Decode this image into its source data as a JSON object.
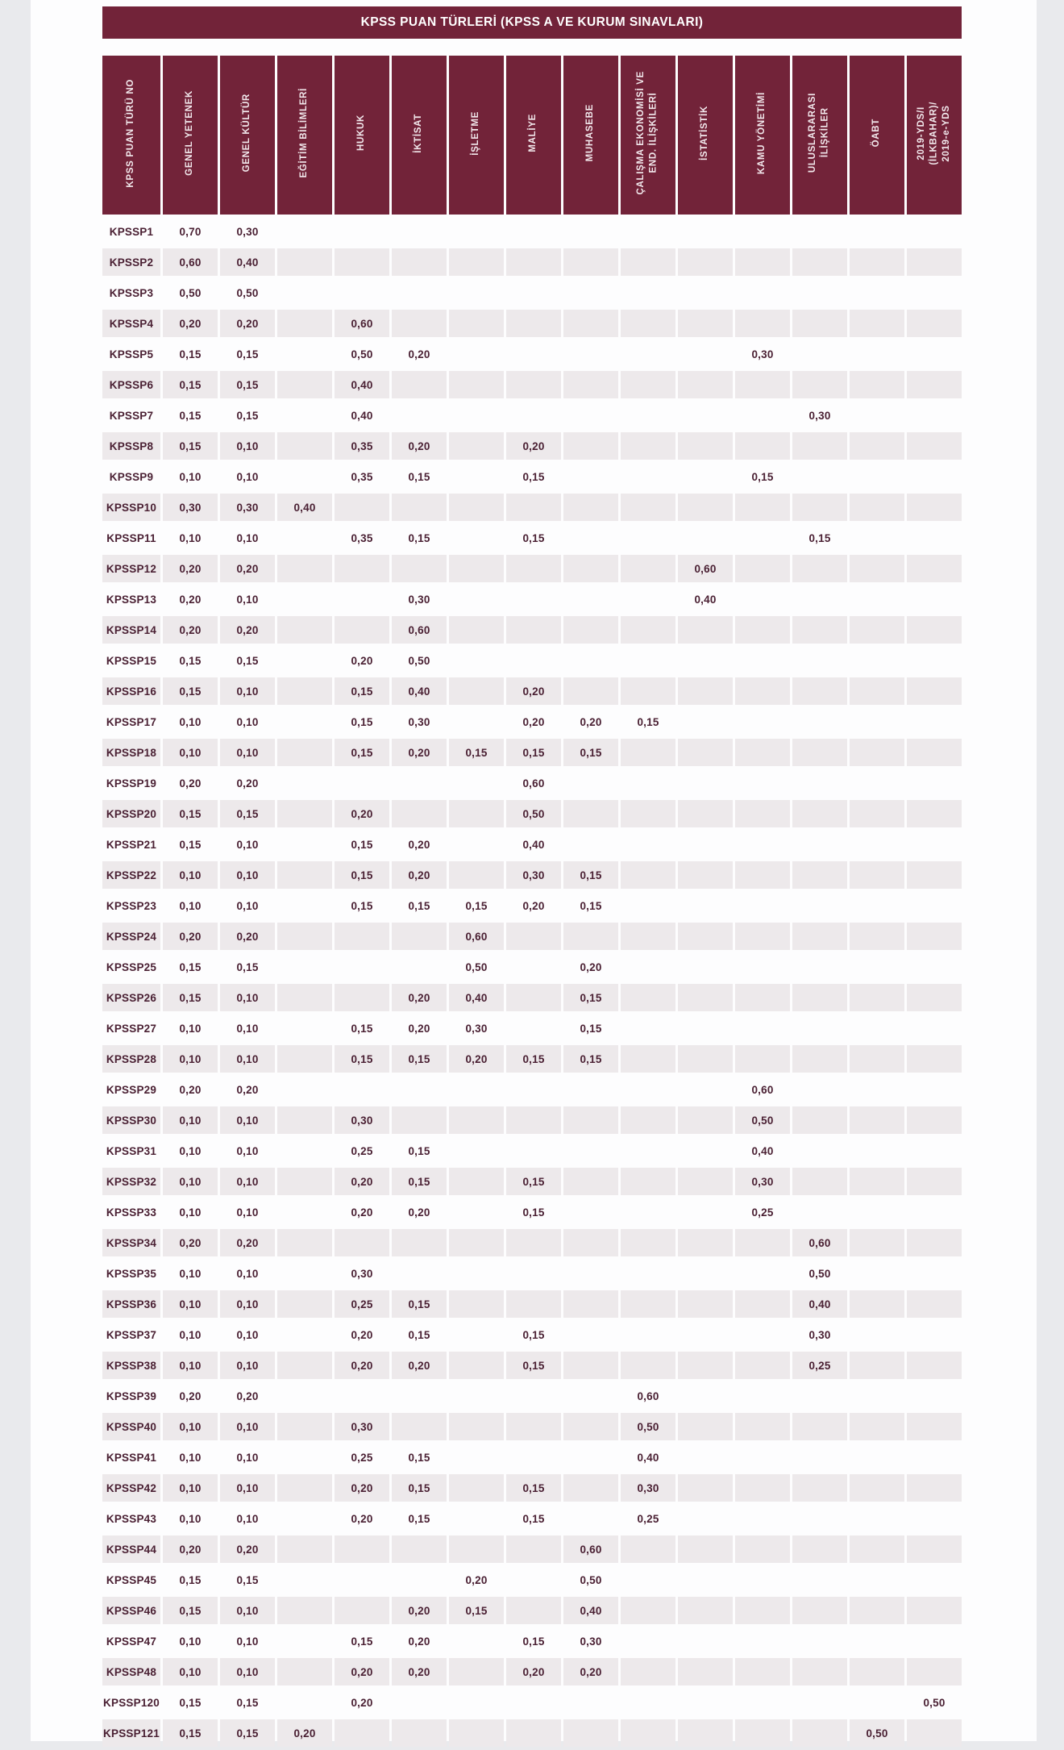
{
  "page": {
    "title": "KPSS PUAN TÜRLERİ (KPSS A VE KURUM SINAVLARI)"
  },
  "colors": {
    "maroon": "#722339",
    "header_text": "#F2E8EC",
    "body_text": "#4A2033",
    "row_alt_bg": "#EDE9EB",
    "page_margin_bg": "#E9EAED",
    "content_bg": "#FDFDFE"
  },
  "chart_data": {
    "type": "table",
    "title": "KPSS PUAN TÜRLERİ (KPSS A VE KURUM SINAVLARI)",
    "legend_position": "none",
    "grid": false,
    "columns": [
      "KPSS PUAN TÜRÜ NO",
      "GENEL YETENEK",
      "GENEL KÜLTÜR",
      "EĞİTİM BİLİMLERİ",
      "HUKUK",
      "İKTİSAT",
      "İŞLETME",
      "MALİYE",
      "MUHASEBE",
      "ÇALIŞMA EKONOMİSİ VE\nEND. İLİŞKİLERİ",
      "İSTATİSTİK",
      "KAMU YÖNETİMİ",
      "ULUSLARARASI\nİLİŞKİLER",
      "ÖABT",
      "2019-YDS/I\n(İLKBAHAR)/\n2019-e-YDS"
    ],
    "rows": [
      {
        "label": "KPSSP1",
        "values": [
          "0,70",
          "0,30",
          "",
          "",
          "",
          "",
          "",
          "",
          "",
          "",
          "",
          "",
          "",
          ""
        ]
      },
      {
        "label": "KPSSP2",
        "values": [
          "0,60",
          "0,40",
          "",
          "",
          "",
          "",
          "",
          "",
          "",
          "",
          "",
          "",
          "",
          ""
        ]
      },
      {
        "label": "KPSSP3",
        "values": [
          "0,50",
          "0,50",
          "",
          "",
          "",
          "",
          "",
          "",
          "",
          "",
          "",
          "",
          "",
          ""
        ]
      },
      {
        "label": "KPSSP4",
        "values": [
          "0,20",
          "0,20",
          "",
          "0,60",
          "",
          "",
          "",
          "",
          "",
          "",
          "",
          "",
          "",
          ""
        ]
      },
      {
        "label": "KPSSP5",
        "values": [
          "0,15",
          "0,15",
          "",
          "0,50",
          "0,20",
          "",
          "",
          "",
          "",
          "",
          "0,30",
          "",
          "",
          ""
        ]
      },
      {
        "label": "KPSSP6",
        "values": [
          "0,15",
          "0,15",
          "",
          "0,40",
          "",
          "",
          "",
          "",
          "",
          "",
          "",
          "",
          "",
          ""
        ]
      },
      {
        "label": "KPSSP7",
        "values": [
          "0,15",
          "0,15",
          "",
          "0,40",
          "",
          "",
          "",
          "",
          "",
          "",
          "",
          "0,30",
          "",
          ""
        ]
      },
      {
        "label": "KPSSP8",
        "values": [
          "0,15",
          "0,10",
          "",
          "0,35",
          "0,20",
          "",
          "0,20",
          "",
          "",
          "",
          "",
          "",
          "",
          ""
        ]
      },
      {
        "label": "KPSSP9",
        "values": [
          "0,10",
          "0,10",
          "",
          "0,35",
          "0,15",
          "",
          "0,15",
          "",
          "",
          "",
          "0,15",
          "",
          "",
          ""
        ]
      },
      {
        "label": "KPSSP10",
        "values": [
          "0,30",
          "0,30",
          "0,40",
          "",
          "",
          "",
          "",
          "",
          "",
          "",
          "",
          "",
          "",
          ""
        ]
      },
      {
        "label": "KPSSP11",
        "values": [
          "0,10",
          "0,10",
          "",
          "0,35",
          "0,15",
          "",
          "0,15",
          "",
          "",
          "",
          "",
          "0,15",
          "",
          ""
        ]
      },
      {
        "label": "KPSSP12",
        "values": [
          "0,20",
          "0,20",
          "",
          "",
          "",
          "",
          "",
          "",
          "",
          "0,60",
          "",
          "",
          "",
          ""
        ]
      },
      {
        "label": "KPSSP13",
        "values": [
          "0,20",
          "0,10",
          "",
          "",
          "0,30",
          "",
          "",
          "",
          "",
          "0,40",
          "",
          "",
          "",
          ""
        ]
      },
      {
        "label": "KPSSP14",
        "values": [
          "0,20",
          "0,20",
          "",
          "",
          "0,60",
          "",
          "",
          "",
          "",
          "",
          "",
          "",
          "",
          ""
        ]
      },
      {
        "label": "KPSSP15",
        "values": [
          "0,15",
          "0,15",
          "",
          "0,20",
          "0,50",
          "",
          "",
          "",
          "",
          "",
          "",
          "",
          "",
          ""
        ]
      },
      {
        "label": "KPSSP16",
        "values": [
          "0,15",
          "0,10",
          "",
          "0,15",
          "0,40",
          "",
          "0,20",
          "",
          "",
          "",
          "",
          "",
          "",
          ""
        ]
      },
      {
        "label": "KPSSP17",
        "values": [
          "0,10",
          "0,10",
          "",
          "0,15",
          "0,30",
          "",
          "0,20",
          "0,20",
          "0,15",
          "",
          "",
          "",
          "",
          ""
        ]
      },
      {
        "label": "KPSSP18",
        "values": [
          "0,10",
          "0,10",
          "",
          "0,15",
          "0,20",
          "0,15",
          "0,15",
          "0,15",
          "",
          "",
          "",
          "",
          "",
          ""
        ]
      },
      {
        "label": "KPSSP19",
        "values": [
          "0,20",
          "0,20",
          "",
          "",
          "",
          "",
          "0,60",
          "",
          "",
          "",
          "",
          "",
          "",
          ""
        ]
      },
      {
        "label": "KPSSP20",
        "values": [
          "0,15",
          "0,15",
          "",
          "0,20",
          "",
          "",
          "0,50",
          "",
          "",
          "",
          "",
          "",
          "",
          ""
        ]
      },
      {
        "label": "KPSSP21",
        "values": [
          "0,15",
          "0,10",
          "",
          "0,15",
          "0,20",
          "",
          "0,40",
          "",
          "",
          "",
          "",
          "",
          "",
          ""
        ]
      },
      {
        "label": "KPSSP22",
        "values": [
          "0,10",
          "0,10",
          "",
          "0,15",
          "0,20",
          "",
          "0,30",
          "0,15",
          "",
          "",
          "",
          "",
          "",
          ""
        ]
      },
      {
        "label": "KPSSP23",
        "values": [
          "0,10",
          "0,10",
          "",
          "0,15",
          "0,15",
          "0,15",
          "0,20",
          "0,15",
          "",
          "",
          "",
          "",
          "",
          ""
        ]
      },
      {
        "label": "KPSSP24",
        "values": [
          "0,20",
          "0,20",
          "",
          "",
          "",
          "0,60",
          "",
          "",
          "",
          "",
          "",
          "",
          "",
          ""
        ]
      },
      {
        "label": "KPSSP25",
        "values": [
          "0,15",
          "0,15",
          "",
          "",
          "",
          "0,50",
          "",
          "0,20",
          "",
          "",
          "",
          "",
          "",
          ""
        ]
      },
      {
        "label": "KPSSP26",
        "values": [
          "0,15",
          "0,10",
          "",
          "",
          "0,20",
          "0,40",
          "",
          "0,15",
          "",
          "",
          "",
          "",
          "",
          ""
        ]
      },
      {
        "label": "KPSSP27",
        "values": [
          "0,10",
          "0,10",
          "",
          "0,15",
          "0,20",
          "0,30",
          "",
          "0,15",
          "",
          "",
          "",
          "",
          "",
          ""
        ]
      },
      {
        "label": "KPSSP28",
        "values": [
          "0,10",
          "0,10",
          "",
          "0,15",
          "0,15",
          "0,20",
          "0,15",
          "0,15",
          "",
          "",
          "",
          "",
          "",
          ""
        ]
      },
      {
        "label": "KPSSP29",
        "values": [
          "0,20",
          "0,20",
          "",
          "",
          "",
          "",
          "",
          "",
          "",
          "",
          "0,60",
          "",
          "",
          ""
        ]
      },
      {
        "label": "KPSSP30",
        "values": [
          "0,10",
          "0,10",
          "",
          "0,30",
          "",
          "",
          "",
          "",
          "",
          "",
          "0,50",
          "",
          "",
          ""
        ]
      },
      {
        "label": "KPSSP31",
        "values": [
          "0,10",
          "0,10",
          "",
          "0,25",
          "0,15",
          "",
          "",
          "",
          "",
          "",
          "0,40",
          "",
          "",
          ""
        ]
      },
      {
        "label": "KPSSP32",
        "values": [
          "0,10",
          "0,10",
          "",
          "0,20",
          "0,15",
          "",
          "0,15",
          "",
          "",
          "",
          "0,30",
          "",
          "",
          ""
        ]
      },
      {
        "label": "KPSSP33",
        "values": [
          "0,10",
          "0,10",
          "",
          "0,20",
          "0,20",
          "",
          "0,15",
          "",
          "",
          "",
          "0,25",
          "",
          "",
          ""
        ]
      },
      {
        "label": "KPSSP34",
        "values": [
          "0,20",
          "0,20",
          "",
          "",
          "",
          "",
          "",
          "",
          "",
          "",
          "",
          "0,60",
          "",
          ""
        ]
      },
      {
        "label": "KPSSP35",
        "values": [
          "0,10",
          "0,10",
          "",
          "0,30",
          "",
          "",
          "",
          "",
          "",
          "",
          "",
          "0,50",
          "",
          ""
        ]
      },
      {
        "label": "KPSSP36",
        "values": [
          "0,10",
          "0,10",
          "",
          "0,25",
          "0,15",
          "",
          "",
          "",
          "",
          "",
          "",
          "0,40",
          "",
          ""
        ]
      },
      {
        "label": "KPSSP37",
        "values": [
          "0,10",
          "0,10",
          "",
          "0,20",
          "0,15",
          "",
          "0,15",
          "",
          "",
          "",
          "",
          "0,30",
          "",
          ""
        ]
      },
      {
        "label": "KPSSP38",
        "values": [
          "0,10",
          "0,10",
          "",
          "0,20",
          "0,20",
          "",
          "0,15",
          "",
          "",
          "",
          "",
          "0,25",
          "",
          ""
        ]
      },
      {
        "label": "KPSSP39",
        "values": [
          "0,20",
          "0,20",
          "",
          "",
          "",
          "",
          "",
          "",
          "0,60",
          "",
          "",
          "",
          "",
          ""
        ]
      },
      {
        "label": "KPSSP40",
        "values": [
          "0,10",
          "0,10",
          "",
          "0,30",
          "",
          "",
          "",
          "",
          "0,50",
          "",
          "",
          "",
          "",
          ""
        ]
      },
      {
        "label": "KPSSP41",
        "values": [
          "0,10",
          "0,10",
          "",
          "0,25",
          "0,15",
          "",
          "",
          "",
          "0,40",
          "",
          "",
          "",
          "",
          ""
        ]
      },
      {
        "label": "KPSSP42",
        "values": [
          "0,10",
          "0,10",
          "",
          "0,20",
          "0,15",
          "",
          "0,15",
          "",
          "0,30",
          "",
          "",
          "",
          "",
          ""
        ]
      },
      {
        "label": "KPSSP43",
        "values": [
          "0,10",
          "0,10",
          "",
          "0,20",
          "0,15",
          "",
          "0,15",
          "",
          "0,25",
          "",
          "",
          "",
          "",
          ""
        ]
      },
      {
        "label": "KPSSP44",
        "values": [
          "0,20",
          "0,20",
          "",
          "",
          "",
          "",
          "",
          "0,60",
          "",
          "",
          "",
          "",
          "",
          ""
        ]
      },
      {
        "label": "KPSSP45",
        "values": [
          "0,15",
          "0,15",
          "",
          "",
          "",
          "0,20",
          "",
          "0,50",
          "",
          "",
          "",
          "",
          "",
          ""
        ]
      },
      {
        "label": "KPSSP46",
        "values": [
          "0,15",
          "0,10",
          "",
          "",
          "0,20",
          "0,15",
          "",
          "0,40",
          "",
          "",
          "",
          "",
          "",
          ""
        ]
      },
      {
        "label": "KPSSP47",
        "values": [
          "0,10",
          "0,10",
          "",
          "0,15",
          "0,20",
          "",
          "0,15",
          "0,30",
          "",
          "",
          "",
          "",
          "",
          ""
        ]
      },
      {
        "label": "KPSSP48",
        "values": [
          "0,10",
          "0,10",
          "",
          "0,20",
          "0,20",
          "",
          "0,20",
          "0,20",
          "",
          "",
          "",
          "",
          "",
          ""
        ]
      },
      {
        "label": "KPSSP120",
        "values": [
          "0,15",
          "0,15",
          "",
          "0,20",
          "",
          "",
          "",
          "",
          "",
          "",
          "",
          "",
          "",
          "0,50"
        ]
      },
      {
        "label": "KPSSP121",
        "values": [
          "0,15",
          "0,15",
          "0,20",
          "",
          "",
          "",
          "",
          "",
          "",
          "",
          "",
          "",
          "0,50",
          ""
        ]
      }
    ]
  }
}
